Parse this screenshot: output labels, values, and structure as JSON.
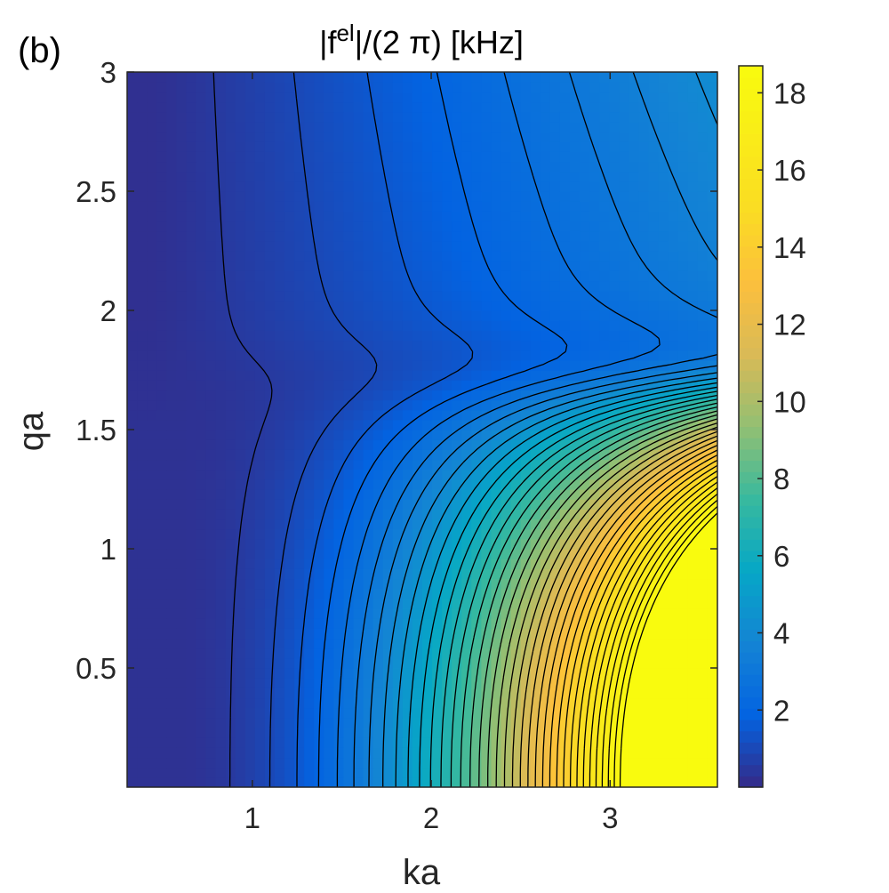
{
  "panel_label": "(b)",
  "chart_data": {
    "type": "heatmap",
    "subtype": "filled-contour",
    "title": {
      "prefix": "|f",
      "superscript": "el",
      "suffix": "|/(2 π) [kHz]"
    },
    "xlabel": "ka",
    "ylabel": "qa",
    "xlim": [
      0.3,
      3.6
    ],
    "ylim": [
      0.0,
      3.0
    ],
    "x_ticks": [
      1,
      2,
      3
    ],
    "x_tick_labels": [
      "1",
      "2",
      "3"
    ],
    "y_ticks": [
      0.5,
      1,
      1.5,
      2,
      2.5,
      3
    ],
    "y_tick_labels": [
      "0.5",
      "1",
      "1.5",
      "2",
      "2.5",
      "3"
    ],
    "colorbar": {
      "colormap": "parula",
      "range": [
        0,
        18.7
      ],
      "ticks": [
        2,
        4,
        6,
        8,
        10,
        12,
        14,
        16,
        18
      ],
      "tick_labels": [
        "2",
        "4",
        "6",
        "8",
        "10",
        "12",
        "14",
        "16",
        "18"
      ]
    },
    "contour_levels": {
      "start": 0.5,
      "step": 0.5,
      "end": 18.5
    },
    "grid": false,
    "legend": "none"
  }
}
